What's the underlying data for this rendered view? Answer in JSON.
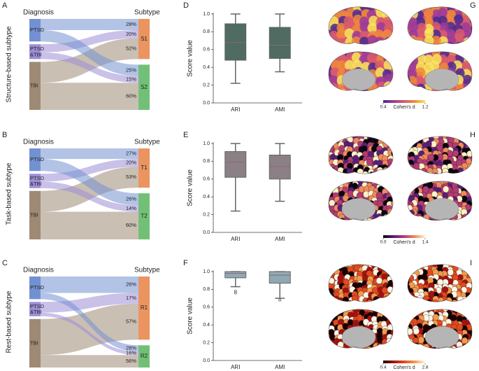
{
  "chart_data": [
    {
      "type": "sankey",
      "panel": "A",
      "ylabel": "Structure-based subtype",
      "source_title": "Diagnosis",
      "target_title": "Subtype",
      "sources": [
        "PTSD",
        "PTSD\n&TBI",
        "TBI"
      ],
      "source_colors": [
        "#7391d2",
        "#9d8ed6",
        "#9e8a74"
      ],
      "targets": [
        "S1",
        "S2"
      ],
      "target_colors": [
        "#eb9460",
        "#72c078"
      ],
      "target_sizes": [
        47,
        53
      ],
      "values": [
        [
          28,
          20,
          52
        ],
        [
          25,
          15,
          60
        ]
      ],
      "value_labels": [
        [
          "28%",
          "20%",
          "52%"
        ],
        [
          "25%",
          "15%",
          "60%"
        ]
      ]
    },
    {
      "type": "sankey",
      "panel": "B",
      "ylabel": "Task-based subtype",
      "source_title": "Diagnosis",
      "target_title": "Subtype",
      "sources": [
        "PTSD",
        "PTSD\n&TBI",
        "TBI"
      ],
      "source_colors": [
        "#7391d2",
        "#9d8ed6",
        "#9e8a74"
      ],
      "targets": [
        "T1",
        "T2"
      ],
      "target_colors": [
        "#eb9460",
        "#72c078"
      ],
      "target_sizes": [
        46,
        54
      ],
      "values": [
        [
          27,
          20,
          53
        ],
        [
          26,
          14,
          60
        ]
      ],
      "value_labels": [
        [
          "27%",
          "20%",
          "53%"
        ],
        [
          "26%",
          "14%",
          "60%"
        ]
      ]
    },
    {
      "type": "sankey",
      "panel": "C",
      "ylabel": "Rest-based subtype",
      "source_title": "Diagnosis",
      "target_title": "Subtype",
      "sources": [
        "PTSD",
        "PTSD\n&TBI",
        "TBI"
      ],
      "source_colors": [
        "#7391d2",
        "#9d8ed6",
        "#9e8a74"
      ],
      "targets": [
        "R1",
        "R2"
      ],
      "target_colors": [
        "#eb9460",
        "#72c078"
      ],
      "target_sizes": [
        74,
        26
      ],
      "values": [
        [
          26,
          17,
          57
        ],
        [
          28,
          16,
          56
        ]
      ],
      "value_labels": [
        [
          "26%",
          "17%",
          "57%"
        ],
        [
          "28%",
          "16%",
          "56%"
        ]
      ]
    },
    {
      "type": "box",
      "panel": "D",
      "ylabel": "Score value",
      "categories": [
        "ARI",
        "AMI"
      ],
      "color": "#4f6b62",
      "ylim": [
        0,
        1
      ],
      "yticks": [
        {
          "value": 0,
          "label": "0.0"
        },
        0.2,
        0.4,
        0.6,
        0.8,
        {
          "value": 1,
          "label": "1.0"
        }
      ],
      "boxes": [
        {
          "min": 0.22,
          "q1": 0.48,
          "median": 0.68,
          "q3": 0.89,
          "max": 1.0,
          "outliers": []
        },
        {
          "min": 0.35,
          "q1": 0.5,
          "median": 0.65,
          "q3": 0.85,
          "max": 1.0,
          "outliers": []
        }
      ]
    },
    {
      "type": "box",
      "panel": "E",
      "ylabel": "Score value",
      "categories": [
        "ARI",
        "AMI"
      ],
      "color": "#8b8085",
      "ylim": [
        0,
        1
      ],
      "yticks": [
        {
          "value": 0,
          "label": "0.0"
        },
        0.2,
        0.4,
        0.6,
        0.8,
        {
          "value": 1,
          "label": "1.0"
        }
      ],
      "boxes": [
        {
          "min": 0.24,
          "q1": 0.62,
          "median": 0.79,
          "q3": 0.91,
          "max": 1.0,
          "outliers": []
        },
        {
          "min": 0.35,
          "q1": 0.6,
          "median": 0.74,
          "q3": 0.87,
          "max": 1.0,
          "outliers": []
        }
      ]
    },
    {
      "type": "box",
      "panel": "F",
      "ylabel": "Score value",
      "categories": [
        "ARI",
        "AMI"
      ],
      "color": "#8fa9b4",
      "ylim": [
        0,
        1
      ],
      "yticks": [
        {
          "value": 0,
          "label": "0.0"
        },
        0.2,
        0.4,
        0.6,
        0.8,
        {
          "value": 1,
          "label": "1.0"
        }
      ],
      "boxes": [
        {
          "min": 0.83,
          "q1": 0.93,
          "median": 0.98,
          "q3": 1.0,
          "max": 1.0,
          "outliers": [
            0.78,
            0.76
          ]
        },
        {
          "min": 0.7,
          "q1": 0.87,
          "median": 0.96,
          "q3": 1.0,
          "max": 1.0,
          "outliers": [
            0.68
          ]
        }
      ]
    },
    {
      "type": "brainmap",
      "panel": "G",
      "colorbar_label": "Cohen's d",
      "clim": [
        0.4,
        1.2
      ],
      "cticks": [
        0.4,
        1.2
      ],
      "colors": [
        "#4b2a90",
        "#9b3b9a",
        "#d85a6e",
        "#f08a3a",
        "#f8e65a"
      ]
    },
    {
      "type": "brainmap",
      "panel": "H",
      "colorbar_label": "Cohen's d",
      "clim": [
        0,
        1.4
      ],
      "cticks": [
        {
          "value": 0,
          "label": "0.0"
        },
        1.4
      ],
      "colors": [
        "#0a0510",
        "#5a1e7a",
        "#b53a72",
        "#f08a5c",
        "#fff3c6"
      ]
    },
    {
      "type": "brainmap",
      "panel": "I",
      "colorbar_label": "Cohen's d",
      "clim": [
        0.4,
        2.8
      ],
      "cticks": [
        0.4,
        2.8
      ],
      "colors": [
        "#1a0000",
        "#a81010",
        "#e34a1e",
        "#f39a4c",
        "#fff6e6"
      ]
    }
  ]
}
